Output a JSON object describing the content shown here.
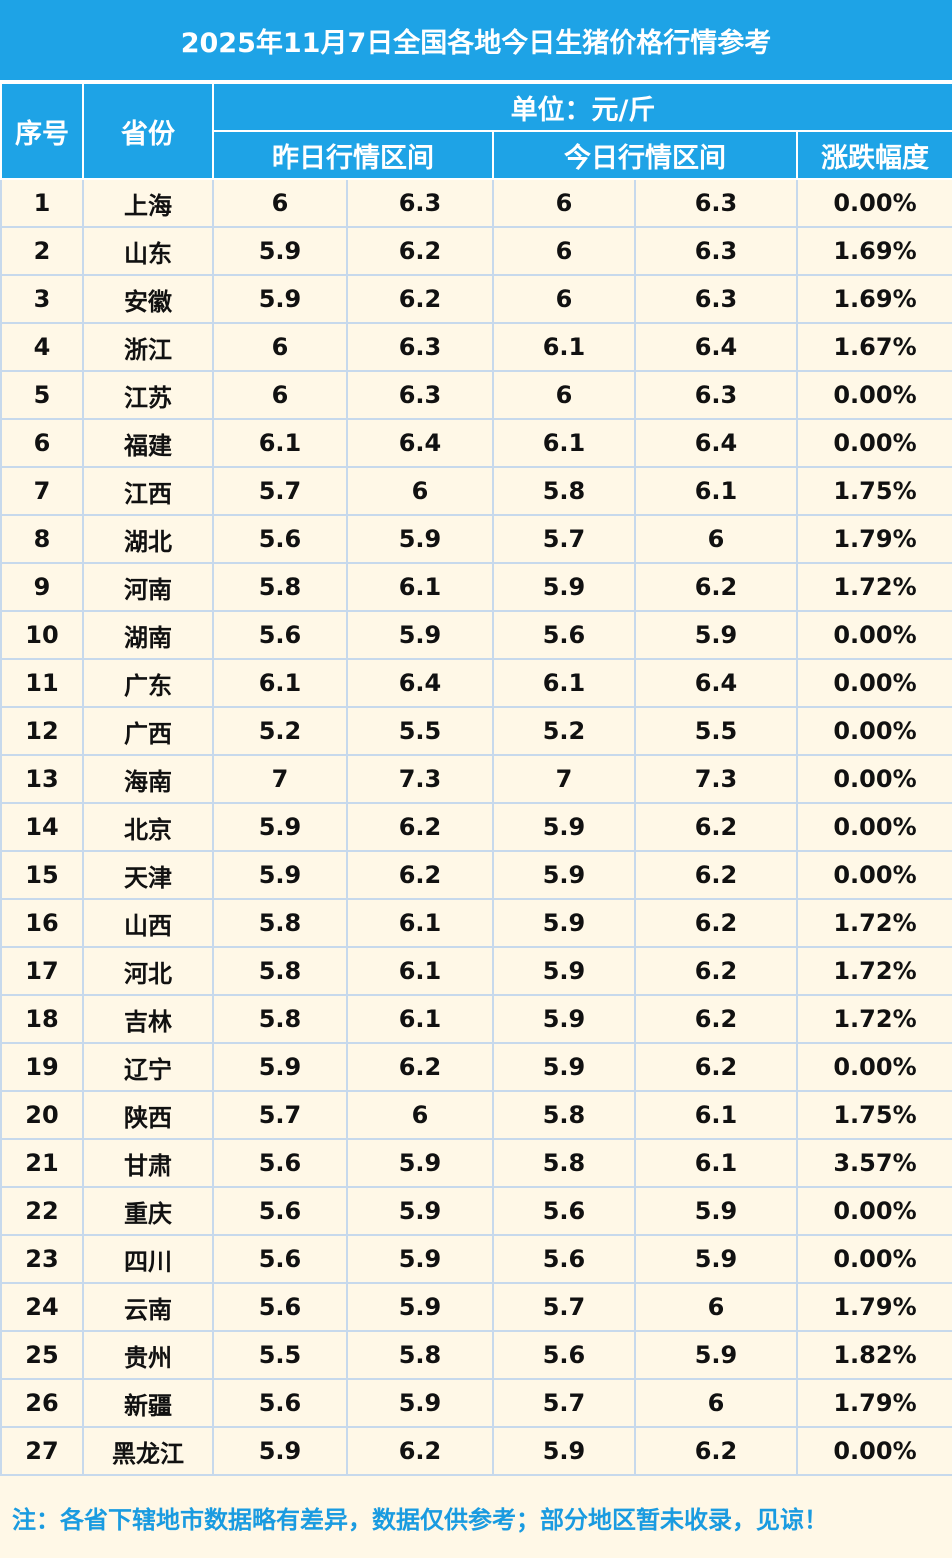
{
  "title": "2025年11月7日全国各地今日生猪价格行情参考",
  "header": {
    "seq": "序号",
    "province": "省份",
    "unit": "单位：元/斤",
    "yesterday": "昨日行情区间",
    "today": "今日行情区间",
    "change": "涨跌幅度"
  },
  "rows": [
    {
      "no": "1",
      "province": "上海",
      "y_low": "6",
      "y_high": "6.3",
      "t_low": "6",
      "t_high": "6.3",
      "change": "0.00%",
      "up": false
    },
    {
      "no": "2",
      "province": "山东",
      "y_low": "5.9",
      "y_high": "6.2",
      "t_low": "6",
      "t_high": "6.3",
      "change": "1.69%",
      "up": true
    },
    {
      "no": "3",
      "province": "安徽",
      "y_low": "5.9",
      "y_high": "6.2",
      "t_low": "6",
      "t_high": "6.3",
      "change": "1.69%",
      "up": true
    },
    {
      "no": "4",
      "province": "浙江",
      "y_low": "6",
      "y_high": "6.3",
      "t_low": "6.1",
      "t_high": "6.4",
      "change": "1.67%",
      "up": true
    },
    {
      "no": "5",
      "province": "江苏",
      "y_low": "6",
      "y_high": "6.3",
      "t_low": "6",
      "t_high": "6.3",
      "change": "0.00%",
      "up": false
    },
    {
      "no": "6",
      "province": "福建",
      "y_low": "6.1",
      "y_high": "6.4",
      "t_low": "6.1",
      "t_high": "6.4",
      "change": "0.00%",
      "up": false
    },
    {
      "no": "7",
      "province": "江西",
      "y_low": "5.7",
      "y_high": "6",
      "t_low": "5.8",
      "t_high": "6.1",
      "change": "1.75%",
      "up": true
    },
    {
      "no": "8",
      "province": "湖北",
      "y_low": "5.6",
      "y_high": "5.9",
      "t_low": "5.7",
      "t_high": "6",
      "change": "1.79%",
      "up": true
    },
    {
      "no": "9",
      "province": "河南",
      "y_low": "5.8",
      "y_high": "6.1",
      "t_low": "5.9",
      "t_high": "6.2",
      "change": "1.72%",
      "up": true
    },
    {
      "no": "10",
      "province": "湖南",
      "y_low": "5.6",
      "y_high": "5.9",
      "t_low": "5.6",
      "t_high": "5.9",
      "change": "0.00%",
      "up": false
    },
    {
      "no": "11",
      "province": "广东",
      "y_low": "6.1",
      "y_high": "6.4",
      "t_low": "6.1",
      "t_high": "6.4",
      "change": "0.00%",
      "up": false
    },
    {
      "no": "12",
      "province": "广西",
      "y_low": "5.2",
      "y_high": "5.5",
      "t_low": "5.2",
      "t_high": "5.5",
      "change": "0.00%",
      "up": false
    },
    {
      "no": "13",
      "province": "海南",
      "y_low": "7",
      "y_high": "7.3",
      "t_low": "7",
      "t_high": "7.3",
      "change": "0.00%",
      "up": false
    },
    {
      "no": "14",
      "province": "北京",
      "y_low": "5.9",
      "y_high": "6.2",
      "t_low": "5.9",
      "t_high": "6.2",
      "change": "0.00%",
      "up": false
    },
    {
      "no": "15",
      "province": "天津",
      "y_low": "5.9",
      "y_high": "6.2",
      "t_low": "5.9",
      "t_high": "6.2",
      "change": "0.00%",
      "up": false
    },
    {
      "no": "16",
      "province": "山西",
      "y_low": "5.8",
      "y_high": "6.1",
      "t_low": "5.9",
      "t_high": "6.2",
      "change": "1.72%",
      "up": true
    },
    {
      "no": "17",
      "province": "河北",
      "y_low": "5.8",
      "y_high": "6.1",
      "t_low": "5.9",
      "t_high": "6.2",
      "change": "1.72%",
      "up": true
    },
    {
      "no": "18",
      "province": "吉林",
      "y_low": "5.8",
      "y_high": "6.1",
      "t_low": "5.9",
      "t_high": "6.2",
      "change": "1.72%",
      "up": true
    },
    {
      "no": "19",
      "province": "辽宁",
      "y_low": "5.9",
      "y_high": "6.2",
      "t_low": "5.9",
      "t_high": "6.2",
      "change": "0.00%",
      "up": false
    },
    {
      "no": "20",
      "province": "陕西",
      "y_low": "5.7",
      "y_high": "6",
      "t_low": "5.8",
      "t_high": "6.1",
      "change": "1.75%",
      "up": true
    },
    {
      "no": "21",
      "province": "甘肃",
      "y_low": "5.6",
      "y_high": "5.9",
      "t_low": "5.8",
      "t_high": "6.1",
      "change": "3.57%",
      "up": true
    },
    {
      "no": "22",
      "province": "重庆",
      "y_low": "5.6",
      "y_high": "5.9",
      "t_low": "5.6",
      "t_high": "5.9",
      "change": "0.00%",
      "up": false
    },
    {
      "no": "23",
      "province": "四川",
      "y_low": "5.6",
      "y_high": "5.9",
      "t_low": "5.6",
      "t_high": "5.9",
      "change": "0.00%",
      "up": false
    },
    {
      "no": "24",
      "province": "云南",
      "y_low": "5.6",
      "y_high": "5.9",
      "t_low": "5.7",
      "t_high": "6",
      "change": "1.79%",
      "up": true
    },
    {
      "no": "25",
      "province": "贵州",
      "y_low": "5.5",
      "y_high": "5.8",
      "t_low": "5.6",
      "t_high": "5.9",
      "change": "1.82%",
      "up": true
    },
    {
      "no": "26",
      "province": "新疆",
      "y_low": "5.6",
      "y_high": "5.9",
      "t_low": "5.7",
      "t_high": "6",
      "change": "1.79%",
      "up": true
    },
    {
      "no": "27",
      "province": "黑龙江",
      "y_low": "5.9",
      "y_high": "6.2",
      "t_low": "5.9",
      "t_high": "6.2",
      "change": "0.00%",
      "up": false
    }
  ],
  "note": "注：各省下辖地市数据略有差异，数据仅供参考；部分地区暂未收录，见谅！",
  "colors": {
    "header_blue": "#1ea3e6",
    "rise_red": "#ff0000",
    "background": "#fff8e7",
    "note_blue": "#1a9be0"
  }
}
